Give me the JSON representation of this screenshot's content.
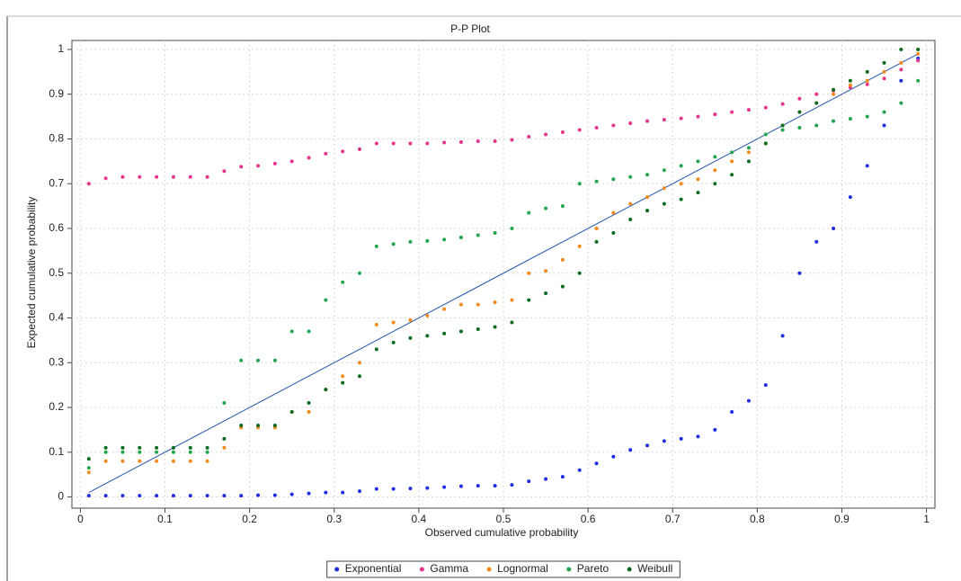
{
  "chart_data": {
    "type": "scatter",
    "title": "P-P Plot",
    "x_label": "Observed cumulative probability",
    "y_label": "Expected cumulative probability",
    "xlim": [
      -0.01,
      1.01
    ],
    "ylim": [
      -0.025,
      1.02
    ],
    "xticks": [
      0,
      0.1,
      0.2,
      0.3,
      0.4,
      0.5,
      0.6,
      0.7,
      0.8,
      0.9,
      1
    ],
    "yticks": [
      0,
      0.1,
      0.2,
      0.3,
      0.4,
      0.5,
      0.6,
      0.7,
      0.8,
      0.9,
      1
    ],
    "grid": true,
    "legend": "bottom",
    "reference_color": "#2255aa",
    "x": [
      0.01,
      0.03,
      0.05,
      0.07,
      0.09,
      0.11,
      0.13,
      0.15,
      0.17,
      0.19,
      0.21,
      0.23,
      0.25,
      0.27,
      0.29,
      0.31,
      0.33,
      0.35,
      0.37,
      0.39,
      0.41,
      0.43,
      0.45,
      0.47,
      0.49,
      0.51,
      0.53,
      0.55,
      0.57,
      0.59,
      0.61,
      0.63,
      0.65,
      0.67,
      0.69,
      0.71,
      0.73,
      0.75,
      0.77,
      0.79,
      0.81,
      0.83,
      0.85,
      0.87,
      0.89,
      0.91,
      0.93,
      0.95,
      0.97,
      0.99
    ],
    "series": [
      {
        "name": "Exponential",
        "color": "#1f2ee0",
        "values": [
          0.003,
          0.003,
          0.003,
          0.003,
          0.003,
          0.003,
          0.003,
          0.003,
          0.003,
          0.003,
          0.004,
          0.004,
          0.006,
          0.008,
          0.01,
          0.01,
          0.013,
          0.018,
          0.018,
          0.019,
          0.02,
          0.022,
          0.024,
          0.025,
          0.025,
          0.027,
          0.035,
          0.04,
          0.045,
          0.06,
          0.075,
          0.09,
          0.105,
          0.115,
          0.125,
          0.13,
          0.135,
          0.15,
          0.19,
          0.215,
          0.25,
          0.36,
          0.5,
          0.57,
          0.6,
          0.67,
          0.74,
          0.83,
          0.93,
          0.98
        ]
      },
      {
        "name": "Gamma",
        "color": "#e8338a",
        "values": [
          0.7,
          0.712,
          0.715,
          0.715,
          0.715,
          0.715,
          0.715,
          0.715,
          0.728,
          0.738,
          0.74,
          0.745,
          0.75,
          0.758,
          0.767,
          0.772,
          0.777,
          0.79,
          0.79,
          0.79,
          0.79,
          0.792,
          0.793,
          0.795,
          0.795,
          0.798,
          0.805,
          0.81,
          0.815,
          0.82,
          0.825,
          0.83,
          0.835,
          0.84,
          0.843,
          0.846,
          0.85,
          0.855,
          0.86,
          0.865,
          0.87,
          0.878,
          0.89,
          0.9,
          0.908,
          0.915,
          0.922,
          0.935,
          0.955,
          0.975
        ]
      },
      {
        "name": "Lognormal",
        "color": "#f28a1c",
        "values": [
          0.055,
          0.08,
          0.08,
          0.08,
          0.08,
          0.08,
          0.08,
          0.08,
          0.11,
          0.155,
          0.155,
          0.155,
          0.19,
          0.19,
          0.24,
          0.27,
          0.3,
          0.385,
          0.39,
          0.395,
          0.405,
          0.42,
          0.43,
          0.43,
          0.435,
          0.44,
          0.5,
          0.505,
          0.53,
          0.56,
          0.6,
          0.635,
          0.655,
          0.67,
          0.69,
          0.7,
          0.71,
          0.73,
          0.75,
          0.77,
          0.79,
          0.83,
          0.86,
          0.88,
          0.9,
          0.92,
          0.93,
          0.95,
          0.97,
          0.99
        ]
      },
      {
        "name": "Pareto",
        "color": "#21a64f",
        "values": [
          0.065,
          0.1,
          0.1,
          0.1,
          0.1,
          0.1,
          0.1,
          0.1,
          0.21,
          0.305,
          0.305,
          0.305,
          0.37,
          0.37,
          0.44,
          0.48,
          0.5,
          0.56,
          0.565,
          0.57,
          0.572,
          0.575,
          0.58,
          0.585,
          0.59,
          0.6,
          0.635,
          0.645,
          0.65,
          0.7,
          0.705,
          0.71,
          0.715,
          0.72,
          0.73,
          0.74,
          0.75,
          0.76,
          0.77,
          0.78,
          0.81,
          0.82,
          0.825,
          0.83,
          0.84,
          0.845,
          0.85,
          0.86,
          0.88,
          0.93
        ]
      },
      {
        "name": "Weibull",
        "color": "#0b6b1f",
        "values": [
          0.085,
          0.11,
          0.11,
          0.11,
          0.11,
          0.11,
          0.11,
          0.11,
          0.13,
          0.16,
          0.16,
          0.16,
          0.19,
          0.21,
          0.24,
          0.255,
          0.27,
          0.33,
          0.345,
          0.355,
          0.36,
          0.365,
          0.37,
          0.375,
          0.38,
          0.39,
          0.44,
          0.455,
          0.47,
          0.5,
          0.57,
          0.59,
          0.62,
          0.64,
          0.655,
          0.665,
          0.68,
          0.7,
          0.72,
          0.75,
          0.79,
          0.83,
          0.86,
          0.88,
          0.91,
          0.93,
          0.95,
          0.97,
          1.0,
          1.0
        ]
      }
    ]
  }
}
